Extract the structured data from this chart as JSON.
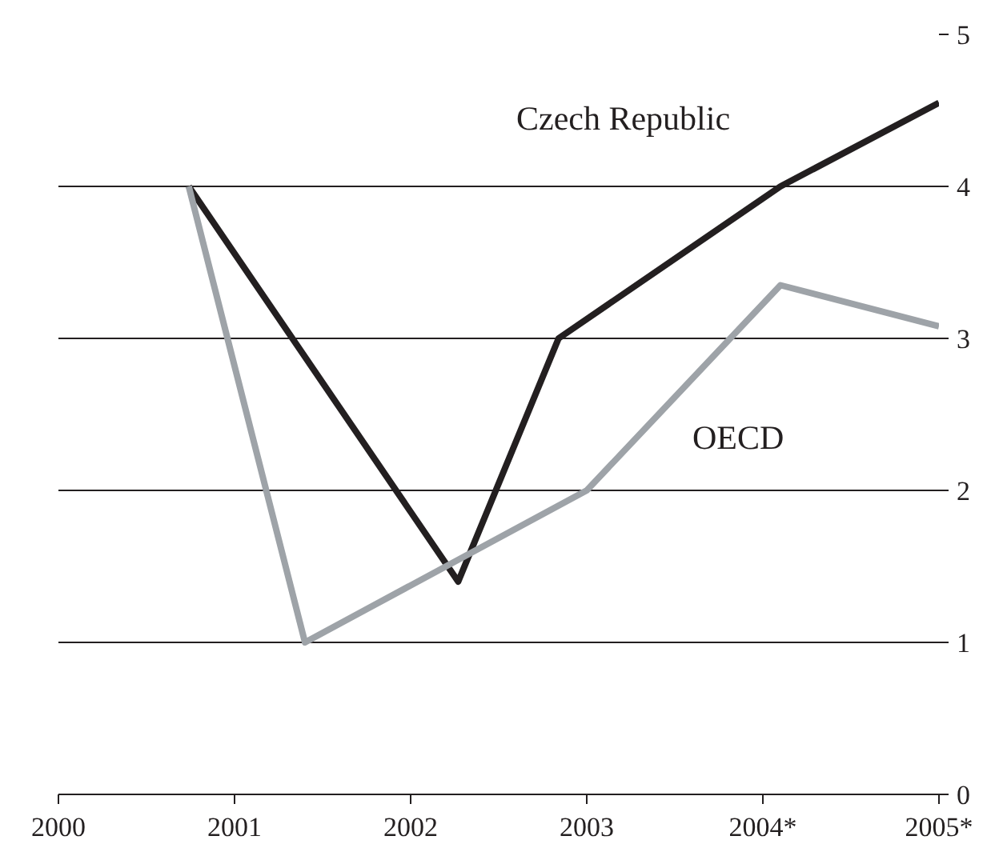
{
  "chart_data": {
    "type": "line",
    "xlim": [
      2000,
      2005
    ],
    "xticks": [
      2000,
      2001,
      2002,
      2003,
      {
        "value": 2004,
        "label": "2004*"
      },
      {
        "value": 2005,
        "label": "2005*"
      }
    ],
    "ylim": [
      0,
      5
    ],
    "yticks": [
      0,
      1,
      2,
      3,
      4,
      5
    ],
    "grid": "y",
    "legend": false,
    "marker": "none",
    "line_style": "solid",
    "series": [
      {
        "name": "Czech Republic",
        "color": "#231f20",
        "x": [
          2000.74,
          2002.27,
          2002.84,
          2004.1,
          2005
        ],
        "values": [
          4,
          1.4,
          3,
          4,
          4.55
        ]
      },
      {
        "name": "OECD",
        "color": "#9ea3a8",
        "x": [
          2000.74,
          2001.4,
          2003.0,
          2004.1,
          2005
        ],
        "values": [
          4,
          1,
          2,
          3.35,
          3.08
        ]
      }
    ]
  }
}
